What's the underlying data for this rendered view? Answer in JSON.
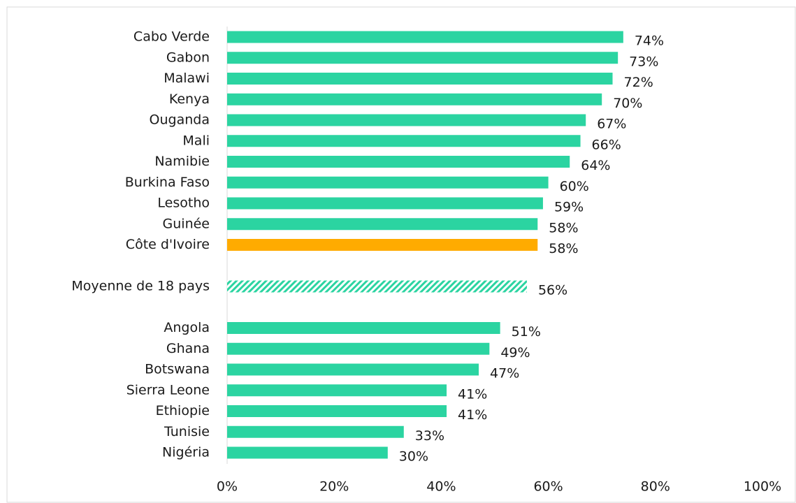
{
  "chart_data": {
    "type": "barh",
    "categories": [
      "Cabo Verde",
      "Gabon",
      "Malawi",
      "Kenya",
      "Ouganda",
      "Mali",
      "Namibie",
      "Burkina Faso",
      "Lesotho",
      "Guinée",
      "Côte d'Ivoire",
      null,
      "Moyenne de 18 pays",
      null,
      "Angola",
      "Ghana",
      "Botswana",
      "Sierra Leone",
      "Ethiopie",
      "Tunisie",
      "Nigéria"
    ],
    "values": [
      74,
      73,
      72,
      70,
      67,
      66,
      64,
      60,
      59,
      58,
      58,
      null,
      56,
      null,
      51,
      49,
      47,
      41,
      41,
      33,
      30
    ],
    "value_labels": [
      "74%",
      "73%",
      "72%",
      "70%",
      "67%",
      "66%",
      "64%",
      "60%",
      "59%",
      "58%",
      "58%",
      null,
      "56%",
      null,
      "51%",
      "49%",
      "47%",
      "41%",
      "41%",
      "33%",
      "30%"
    ],
    "colors": [
      "#2bd4a1",
      "#2bd4a1",
      "#2bd4a1",
      "#2bd4a1",
      "#2bd4a1",
      "#2bd4a1",
      "#2bd4a1",
      "#2bd4a1",
      "#2bd4a1",
      "#2bd4a1",
      "#ffab00",
      null,
      "#2bd4a1",
      null,
      "#2bd4a1",
      "#2bd4a1",
      "#2bd4a1",
      "#2bd4a1",
      "#2bd4a1",
      "#2bd4a1",
      "#2bd4a1"
    ],
    "hatched_bars": [
      12
    ],
    "xlim": [
      0,
      100
    ],
    "xticks": [
      {
        "value": 0,
        "label": "0%"
      },
      {
        "value": 20,
        "label": "20%"
      },
      {
        "value": 40,
        "label": "40%"
      },
      {
        "value": 60,
        "label": "60%"
      },
      {
        "value": 80,
        "label": "80%"
      },
      {
        "value": 100,
        "label": "100%"
      }
    ],
    "grid": false
  }
}
